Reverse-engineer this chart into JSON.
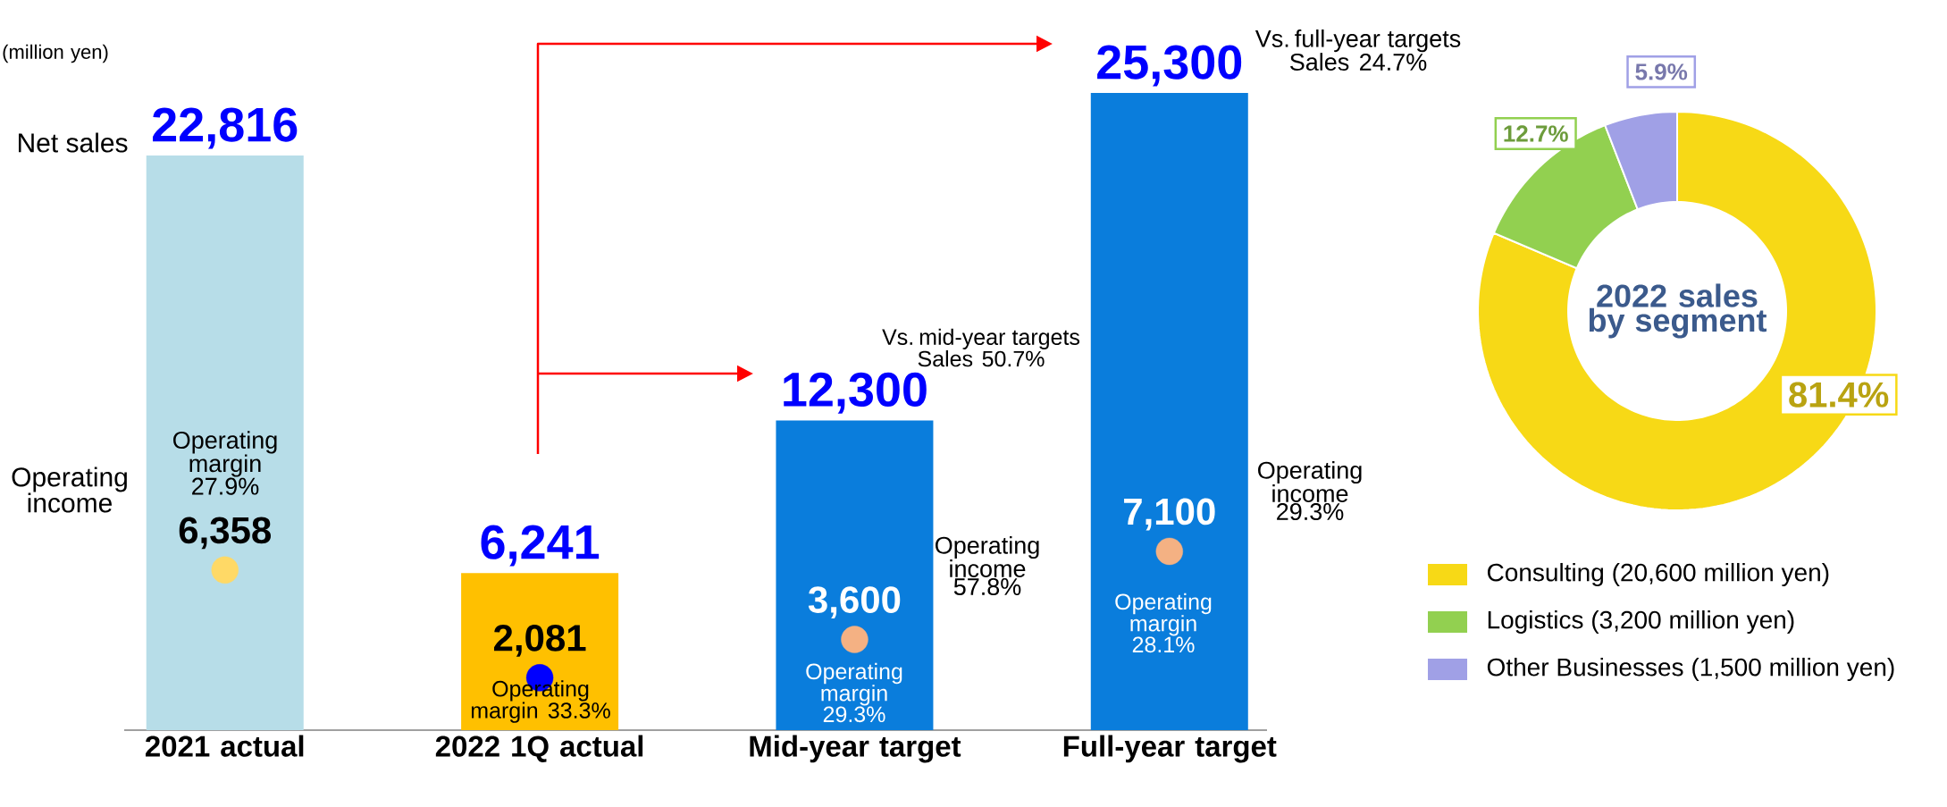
{
  "chart_data": [
    {
      "type": "bar",
      "categories": [
        "2021 actual",
        "2022 1Q actual",
        "Mid-year target",
        "Full-year target"
      ],
      "series": [
        {
          "name": "Net sales",
          "type": "bar",
          "colors": [
            "#b7dde8",
            "#ffc000",
            "#0a7ddc",
            "#0a7ddc"
          ],
          "values": [
            22816,
            6241,
            12300,
            25300
          ],
          "value_labels": [
            "22,816",
            "6,241",
            "12,300",
            "25,300"
          ]
        },
        {
          "type": "scatter",
          "marker": "circle",
          "colors": [
            "#ffd966",
            "#0000ff",
            "#f4b183",
            "#f4b183"
          ],
          "values": [
            6358,
            2081,
            3600,
            7100
          ],
          "value_labels": [
            "6,358",
            "2,081",
            "3,600",
            "7,100"
          ]
        }
      ],
      "annotations": [
        "(million yen)",
        "Operating income",
        "Operating margin 27.9%",
        "Operating margin 33.3%",
        "Operating margin 29.3%",
        "Operating margin 28.1%",
        "Vs. mid-year targets Sales 50.7%",
        "Operating income 57.8%",
        "Vs. full-year targets Sales 24.7%",
        "Operating income 29.3%"
      ]
    },
    {
      "type": "donut",
      "title": "2022 sales by segment",
      "categories": [
        "Consulting (20,600 million yen)",
        "Logistics (3,200 million yen)",
        "Other Businesses (1,500 million yen)"
      ],
      "values": [
        81.4,
        12.7,
        5.9
      ],
      "colors": [
        "#f7d916",
        "#92d050",
        "#a0a0e6"
      ],
      "value_labels": [
        "81.4%",
        "12.7%",
        "5.9%"
      ],
      "legend": "bottom right"
    }
  ]
}
